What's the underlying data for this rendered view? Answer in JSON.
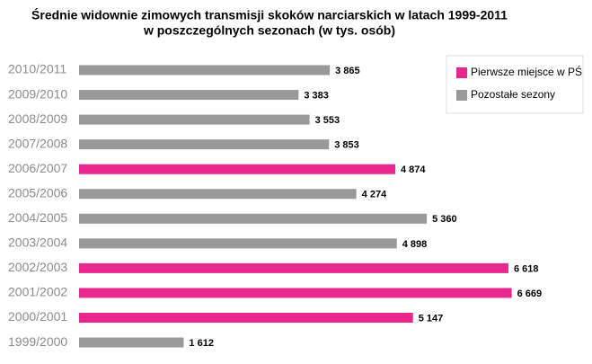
{
  "chart_data": {
    "type": "bar",
    "orientation": "horizontal",
    "title": [
      "Średnie widownie zimowych transmisji skoków narciarskich  w latach 1999-2011",
      "w poszczególnych sezonach (w tys. osób)"
    ],
    "categories": [
      "2010/2011",
      "2009/2010",
      "2008/2009",
      "2007/2008",
      "2006/2007",
      "2005/2006",
      "2004/2005",
      "2003/2004",
      "2002/2003",
      "2001/2002",
      "2000/2001",
      "1999/2000"
    ],
    "series": [
      {
        "name": "Pierwsze miejsce w  PŚ",
        "color": "#e8288c",
        "values": [
          null,
          null,
          null,
          null,
          4874,
          null,
          null,
          null,
          6618,
          6669,
          5147,
          null
        ],
        "value_labels": [
          null,
          null,
          null,
          null,
          "4 874",
          null,
          null,
          null,
          "6 618",
          "6 669",
          "5 147",
          null
        ]
      },
      {
        "name": "Pozostałe sezony",
        "color": "#999999",
        "values": [
          3865,
          3383,
          3553,
          3853,
          null,
          4274,
          5360,
          4898,
          null,
          null,
          null,
          1612
        ],
        "value_labels": [
          "3 865",
          "3 383",
          "3 553",
          "3 853",
          null,
          "4 274",
          "5 360",
          "4 898",
          null,
          null,
          null,
          "1 612"
        ]
      }
    ],
    "legend": "right"
  }
}
